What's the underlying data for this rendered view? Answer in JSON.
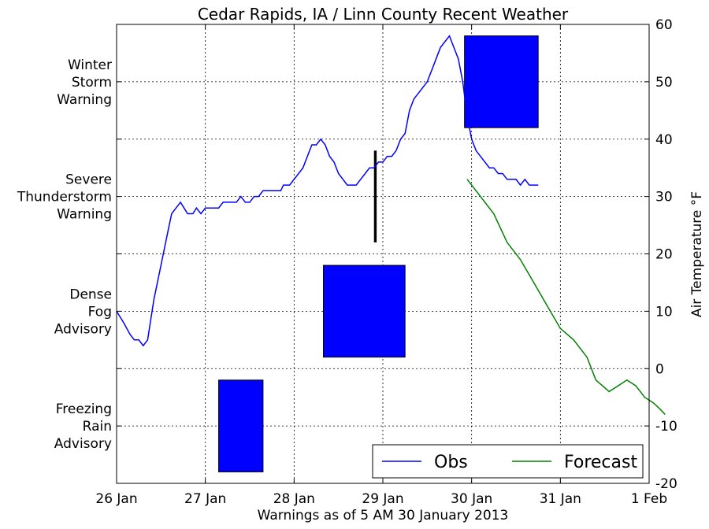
{
  "chart_data": {
    "type": "line",
    "title": "Cedar Rapids, IA / Linn County Recent Weather",
    "xlabel": "Warnings as of 5 AM 30 January 2013",
    "ylabel": "Air Temperature °F",
    "x_tick_labels": [
      "26 Jan",
      "27 Jan",
      "28 Jan",
      "29 Jan",
      "30 Jan",
      "31 Jan",
      "1 Feb"
    ],
    "xlim_days": [
      26,
      32
    ],
    "ylim": [
      -20,
      60
    ],
    "y_ticks": [
      -20,
      -10,
      0,
      10,
      20,
      30,
      40,
      50,
      60
    ],
    "grid": true,
    "legend_position": "bottom-right",
    "warning_categories": [
      "Freezing\nRain\nAdvisory",
      "Dense\nFog\nAdvisory",
      "Severe\nThunderstorm\nWarning",
      "Winter\nStorm\nWarning"
    ],
    "warnings": [
      {
        "category": "Freezing Rain Advisory",
        "start_day": 27.15,
        "end_day": 27.65,
        "color": "#0000ff"
      },
      {
        "category": "Dense Fog Advisory",
        "start_day": 28.33,
        "end_day": 29.25,
        "color": "#0000ff"
      },
      {
        "category": "Severe Thunderstorm Warning",
        "start_day": 28.9,
        "end_day": 28.93,
        "color": "#000000"
      },
      {
        "category": "Winter Storm Warning",
        "start_day": 29.92,
        "end_day": 30.75,
        "color": "#0000ff"
      }
    ],
    "series": [
      {
        "name": "Obs",
        "color": "#0000ff",
        "points": [
          [
            26.0,
            10
          ],
          [
            26.08,
            8
          ],
          [
            26.15,
            6
          ],
          [
            26.2,
            5
          ],
          [
            26.25,
            5
          ],
          [
            26.3,
            4
          ],
          [
            26.35,
            5
          ],
          [
            26.42,
            12
          ],
          [
            26.5,
            18
          ],
          [
            26.58,
            24
          ],
          [
            26.62,
            27
          ],
          [
            26.67,
            28
          ],
          [
            26.72,
            29
          ],
          [
            26.76,
            28
          ],
          [
            26.8,
            27
          ],
          [
            26.86,
            27
          ],
          [
            26.9,
            28
          ],
          [
            26.95,
            27
          ],
          [
            27.0,
            28
          ],
          [
            27.1,
            28
          ],
          [
            27.15,
            28
          ],
          [
            27.2,
            29
          ],
          [
            27.3,
            29
          ],
          [
            27.35,
            29
          ],
          [
            27.4,
            30
          ],
          [
            27.45,
            29
          ],
          [
            27.5,
            29
          ],
          [
            27.55,
            30
          ],
          [
            27.6,
            30
          ],
          [
            27.65,
            31
          ],
          [
            27.7,
            31
          ],
          [
            27.8,
            31
          ],
          [
            27.85,
            31
          ],
          [
            27.88,
            32
          ],
          [
            27.95,
            32
          ],
          [
            28.0,
            33
          ],
          [
            28.05,
            34
          ],
          [
            28.1,
            35
          ],
          [
            28.15,
            37
          ],
          [
            28.2,
            39
          ],
          [
            28.25,
            39
          ],
          [
            28.3,
            40
          ],
          [
            28.35,
            39
          ],
          [
            28.4,
            37
          ],
          [
            28.45,
            36
          ],
          [
            28.5,
            34
          ],
          [
            28.55,
            33
          ],
          [
            28.6,
            32
          ],
          [
            28.65,
            32
          ],
          [
            28.7,
            32
          ],
          [
            28.75,
            33
          ],
          [
            28.8,
            34
          ],
          [
            28.85,
            35
          ],
          [
            28.9,
            35
          ],
          [
            28.95,
            36
          ],
          [
            29.0,
            36
          ],
          [
            29.05,
            37
          ],
          [
            29.1,
            37
          ],
          [
            29.15,
            38
          ],
          [
            29.2,
            40
          ],
          [
            29.25,
            41
          ],
          [
            29.3,
            45
          ],
          [
            29.35,
            47
          ],
          [
            29.4,
            48
          ],
          [
            29.45,
            49
          ],
          [
            29.5,
            50
          ],
          [
            29.55,
            52
          ],
          [
            29.6,
            54
          ],
          [
            29.65,
            56
          ],
          [
            29.7,
            57
          ],
          [
            29.75,
            58
          ],
          [
            29.8,
            56
          ],
          [
            29.85,
            54
          ],
          [
            29.9,
            50
          ],
          [
            29.95,
            44
          ],
          [
            30.0,
            40
          ],
          [
            30.05,
            38
          ],
          [
            30.1,
            37
          ],
          [
            30.15,
            36
          ],
          [
            30.2,
            35
          ],
          [
            30.25,
            35
          ],
          [
            30.3,
            34
          ],
          [
            30.35,
            34
          ],
          [
            30.4,
            33
          ],
          [
            30.45,
            33
          ],
          [
            30.5,
            33
          ],
          [
            30.55,
            32
          ],
          [
            30.6,
            33
          ],
          [
            30.65,
            32
          ],
          [
            30.7,
            32
          ],
          [
            30.75,
            32
          ]
        ]
      },
      {
        "name": "Forecast",
        "color": "#008000",
        "points": [
          [
            29.95,
            33
          ],
          [
            30.1,
            30
          ],
          [
            30.25,
            27
          ],
          [
            30.4,
            22
          ],
          [
            30.55,
            19
          ],
          [
            30.7,
            15
          ],
          [
            30.85,
            11
          ],
          [
            31.0,
            7
          ],
          [
            31.15,
            5
          ],
          [
            31.3,
            2
          ],
          [
            31.4,
            -2
          ],
          [
            31.55,
            -4
          ],
          [
            31.65,
            -3
          ],
          [
            31.75,
            -2
          ],
          [
            31.85,
            -3
          ],
          [
            31.95,
            -5
          ],
          [
            32.05,
            -6
          ],
          [
            32.12,
            -7
          ],
          [
            32.18,
            -8
          ]
        ]
      }
    ]
  }
}
